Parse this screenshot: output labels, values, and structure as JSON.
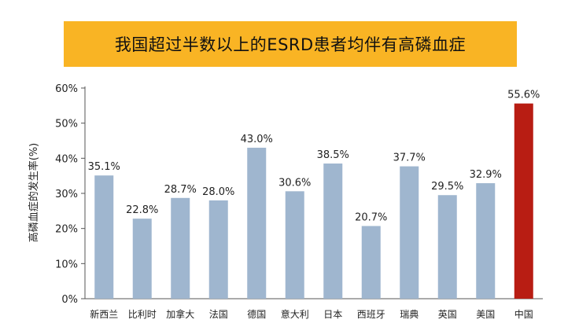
{
  "chart_data": {
    "type": "bar",
    "title": "我国超过半数以上的ESRD患者均伴有高磷血症",
    "ylabel": "高磷血症的发生率(%)",
    "xlabel": "",
    "ylim": [
      0,
      60
    ],
    "yticks": [
      "0%",
      "10%",
      "20%",
      "30%",
      "40%",
      "50%",
      "60%"
    ],
    "grid": false,
    "categories": [
      "新西兰",
      "比利时",
      "加拿大",
      "法国",
      "德国",
      "意大利",
      "日本",
      "西班牙",
      "瑞典",
      "英国",
      "美国",
      "中国"
    ],
    "values": [
      35.1,
      22.8,
      28.7,
      28.0,
      43.0,
      30.6,
      38.5,
      20.7,
      37.7,
      29.5,
      32.9,
      55.6
    ],
    "value_labels": [
      "35.1%",
      "22.8%",
      "28.7%",
      "28.0%",
      "43.0%",
      "30.6%",
      "38.5%",
      "20.7%",
      "37.7%",
      "29.5%",
      "32.9%",
      "55.6%"
    ],
    "colors": {
      "default_bar": "#9fb6cf",
      "highlight_bar": "#b81d13",
      "highlight_index": 11,
      "banner": "#f9b424"
    }
  }
}
